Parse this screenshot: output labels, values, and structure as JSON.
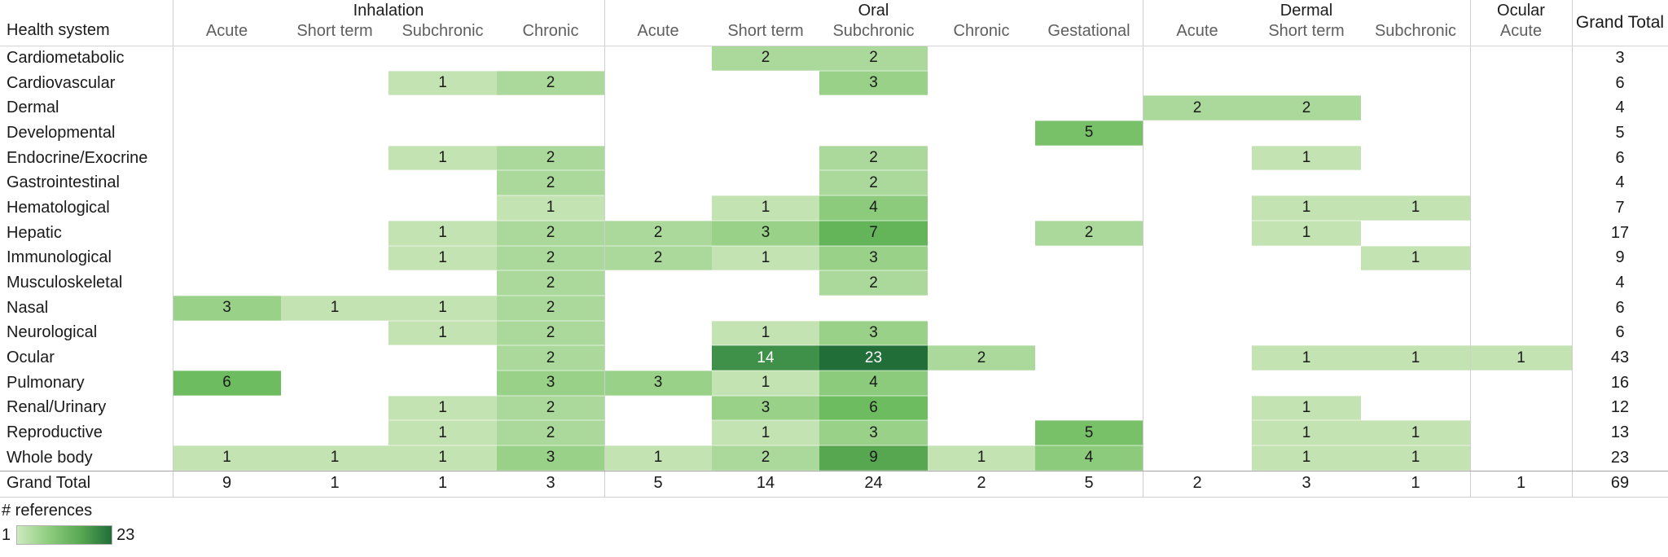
{
  "header": {
    "row_label": "Health system",
    "groups": [
      {
        "label": "Inhalation",
        "columns": [
          "Acute",
          "Short term",
          "Subchronic",
          "Chronic"
        ]
      },
      {
        "label": "Oral",
        "columns": [
          "Acute",
          "Short term",
          "Subchronic",
          "Chronic",
          "Gestational"
        ]
      },
      {
        "label": "Dermal",
        "columns": [
          "Acute",
          "Short term",
          "Subchronic"
        ]
      },
      {
        "label": "Ocular",
        "columns": [
          "Acute"
        ]
      }
    ],
    "grand_total_label": "Grand Total"
  },
  "chart_data": {
    "type": "heatmap",
    "title": "",
    "value_meaning": "# references",
    "columns": [
      "Inhalation Acute",
      "Inhalation Short term",
      "Inhalation Subchronic",
      "Inhalation Chronic",
      "Oral Acute",
      "Oral Short term",
      "Oral Subchronic",
      "Oral Chronic",
      "Oral Gestational",
      "Dermal Acute",
      "Dermal Short term",
      "Dermal Subchronic",
      "Ocular Acute"
    ],
    "rows": [
      {
        "label": "Cardiometabolic",
        "values": [
          null,
          null,
          null,
          null,
          null,
          2,
          2,
          null,
          null,
          null,
          null,
          null,
          null
        ],
        "grand_total": 3
      },
      {
        "label": "Cardiovascular",
        "values": [
          null,
          null,
          1,
          2,
          null,
          null,
          3,
          null,
          null,
          null,
          null,
          null,
          null
        ],
        "grand_total": 6
      },
      {
        "label": "Dermal",
        "values": [
          null,
          null,
          null,
          null,
          null,
          null,
          null,
          null,
          null,
          2,
          2,
          null,
          null
        ],
        "grand_total": 4
      },
      {
        "label": "Developmental",
        "values": [
          null,
          null,
          null,
          null,
          null,
          null,
          null,
          null,
          5,
          null,
          null,
          null,
          null
        ],
        "grand_total": 5
      },
      {
        "label": "Endocrine/Exocrine",
        "values": [
          null,
          null,
          1,
          2,
          null,
          null,
          2,
          null,
          null,
          null,
          1,
          null,
          null
        ],
        "grand_total": 6
      },
      {
        "label": "Gastrointestinal",
        "values": [
          null,
          null,
          null,
          2,
          null,
          null,
          2,
          null,
          null,
          null,
          null,
          null,
          null
        ],
        "grand_total": 4
      },
      {
        "label": "Hematological",
        "values": [
          null,
          null,
          null,
          1,
          null,
          1,
          4,
          null,
          null,
          null,
          1,
          1,
          null
        ],
        "grand_total": 7
      },
      {
        "label": "Hepatic",
        "values": [
          null,
          null,
          1,
          2,
          2,
          3,
          7,
          null,
          2,
          null,
          1,
          null,
          null
        ],
        "grand_total": 17
      },
      {
        "label": "Immunological",
        "values": [
          null,
          null,
          1,
          2,
          2,
          1,
          3,
          null,
          null,
          null,
          null,
          1,
          null
        ],
        "grand_total": 9
      },
      {
        "label": "Musculoskeletal",
        "values": [
          null,
          null,
          null,
          2,
          null,
          null,
          2,
          null,
          null,
          null,
          null,
          null,
          null
        ],
        "grand_total": 4
      },
      {
        "label": "Nasal",
        "values": [
          3,
          1,
          1,
          2,
          null,
          null,
          null,
          null,
          null,
          null,
          null,
          null,
          null
        ],
        "grand_total": 6
      },
      {
        "label": "Neurological",
        "values": [
          null,
          null,
          1,
          2,
          null,
          1,
          3,
          null,
          null,
          null,
          null,
          null,
          null
        ],
        "grand_total": 6
      },
      {
        "label": "Ocular",
        "values": [
          null,
          null,
          null,
          2,
          null,
          14,
          23,
          2,
          null,
          null,
          1,
          1,
          1
        ],
        "grand_total": 43
      },
      {
        "label": "Pulmonary",
        "values": [
          6,
          null,
          null,
          3,
          3,
          1,
          4,
          null,
          null,
          null,
          null,
          null,
          null
        ],
        "grand_total": 16
      },
      {
        "label": "Renal/Urinary",
        "values": [
          null,
          null,
          1,
          2,
          null,
          3,
          6,
          null,
          null,
          null,
          1,
          null,
          null
        ],
        "grand_total": 12
      },
      {
        "label": "Reproductive",
        "values": [
          null,
          null,
          1,
          2,
          null,
          1,
          3,
          null,
          5,
          null,
          1,
          1,
          null
        ],
        "grand_total": 13
      },
      {
        "label": "Whole body",
        "values": [
          1,
          1,
          1,
          3,
          1,
          2,
          9,
          1,
          4,
          null,
          1,
          1,
          null
        ],
        "grand_total": 23
      }
    ],
    "grand_total_row": {
      "label": "Grand Total",
      "values": [
        9,
        1,
        1,
        3,
        5,
        14,
        24,
        2,
        5,
        2,
        3,
        1,
        1
      ],
      "grand_total": 69
    },
    "legend_position": "bottom-left",
    "grid": "group separators only",
    "value_range": [
      1,
      23
    ]
  },
  "legend": {
    "label": "# references",
    "min_label": "1",
    "max_label": "23",
    "min_color": "#cdeabf",
    "max_color": "#216e39"
  },
  "colors": {
    "value_fill": {
      "1": "#c3e3b2",
      "2": "#abd99b",
      "3": "#99d189",
      "4": "#8bcb7b",
      "5": "#79c169",
      "6": "#6ebc60",
      "7": "#64b55a",
      "9": "#57a751",
      "14": "#3f9048",
      "23": "#216e39"
    },
    "white_text_values": [
      14,
      23
    ],
    "separator": "#cfcfcf",
    "total_rule": "#a6a6a6",
    "header_text": "#5f5f5f",
    "text": "#1a1a1a"
  }
}
